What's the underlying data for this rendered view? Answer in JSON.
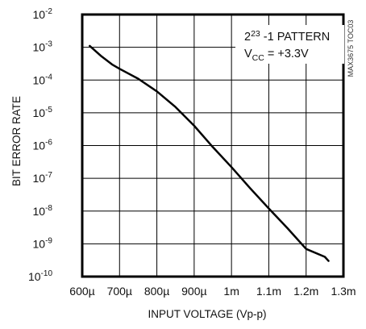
{
  "chart_data": {
    "type": "line",
    "xlabel": "INPUT VOLTAGE (Vp-p)",
    "ylabel": "BIT ERROR RATE",
    "x_scale": "linear",
    "y_scale": "log",
    "xlim": [
      0.0006,
      0.0013
    ],
    "ylim": [
      1e-10,
      0.01
    ],
    "grid": true,
    "x_ticks": [
      {
        "value": 0.0006,
        "label": "600µ"
      },
      {
        "value": 0.0007,
        "label": "700µ"
      },
      {
        "value": 0.0008,
        "label": "800µ"
      },
      {
        "value": 0.0009,
        "label": "900µ"
      },
      {
        "value": 0.001,
        "label": "1m"
      },
      {
        "value": 0.0011,
        "label": "1.1m"
      },
      {
        "value": 0.0012,
        "label": "1.2m"
      },
      {
        "value": 0.0013,
        "label": "1.3m"
      }
    ],
    "y_ticks": [
      {
        "value": 0.01,
        "base": "10",
        "exp": "-2"
      },
      {
        "value": 0.001,
        "base": "10",
        "exp": "-3"
      },
      {
        "value": 0.0001,
        "base": "10",
        "exp": "-4"
      },
      {
        "value": 1e-05,
        "base": "10",
        "exp": "-5"
      },
      {
        "value": 1e-06,
        "base": "10",
        "exp": "-6"
      },
      {
        "value": 1e-07,
        "base": "10",
        "exp": "-7"
      },
      {
        "value": 1e-08,
        "base": "10",
        "exp": "-8"
      },
      {
        "value": 1e-09,
        "base": "10",
        "exp": "-9"
      },
      {
        "value": 1e-10,
        "base": "10",
        "exp": "-10"
      }
    ],
    "series": [
      {
        "x": [
          0.00062,
          0.00065,
          0.00068,
          0.0007,
          0.00075,
          0.0008,
          0.00085,
          0.0009,
          0.00095,
          0.001,
          0.00105,
          0.0011,
          0.00115,
          0.0012,
          0.00125,
          0.00126
        ],
        "y": [
          0.0011,
          0.00055,
          0.0003,
          0.00022,
          0.00011,
          4.5e-05,
          1.5e-05,
          4e-06,
          9e-07,
          2.2e-07,
          5e-08,
          1.2e-08,
          3e-09,
          7e-10,
          4e-10,
          3e-10
        ]
      }
    ],
    "annotation": {
      "line1_base": "2",
      "line1_exp": "23",
      "line1_rest": " -1 PATTERN",
      "line2_base": "V",
      "line2_sub": "CC",
      "line2_rest": " = +3.3V"
    },
    "figure_code": "MAX3675 TOC03",
    "line_color": "#000000",
    "grid_color": "#000000"
  }
}
